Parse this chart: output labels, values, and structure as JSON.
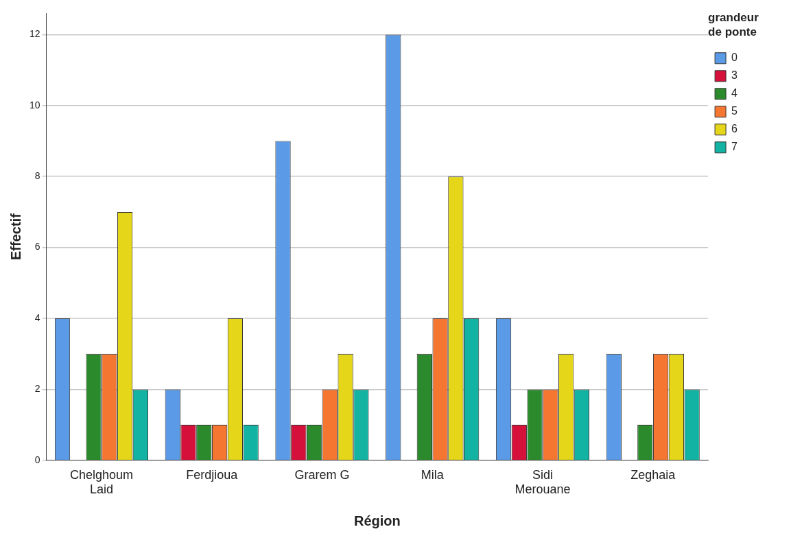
{
  "chart_data": {
    "type": "bar",
    "xlabel": "Région",
    "ylabel": "Effectif",
    "legend_title": "grandeur de ponte",
    "categories": [
      "Chelghoum Laid",
      "Ferdjioua",
      "Grarem G",
      "Mila",
      "Sidi Merouane",
      "Zeghaia"
    ],
    "series": [
      {
        "name": "0",
        "color": "#5a9ae6",
        "values": [
          4,
          2,
          9,
          12,
          4,
          3
        ]
      },
      {
        "name": "3",
        "color": "#d5103b",
        "values": [
          null,
          1,
          1,
          null,
          1,
          null
        ]
      },
      {
        "name": "4",
        "color": "#2b8a2b",
        "values": [
          3,
          1,
          1,
          3,
          2,
          1
        ]
      },
      {
        "name": "5",
        "color": "#f57631",
        "values": [
          3,
          1,
          2,
          4,
          2,
          3
        ]
      },
      {
        "name": "6",
        "color": "#e6d619",
        "values": [
          7,
          4,
          3,
          8,
          3,
          3
        ]
      },
      {
        "name": "7",
        "color": "#12b3a2",
        "values": [
          2,
          1,
          2,
          4,
          2,
          2
        ]
      }
    ],
    "ylim": [
      0,
      12.6
    ],
    "yticks": [
      0,
      2,
      4,
      6,
      8,
      10,
      12
    ],
    "grid": "y",
    "legend": "top right"
  }
}
